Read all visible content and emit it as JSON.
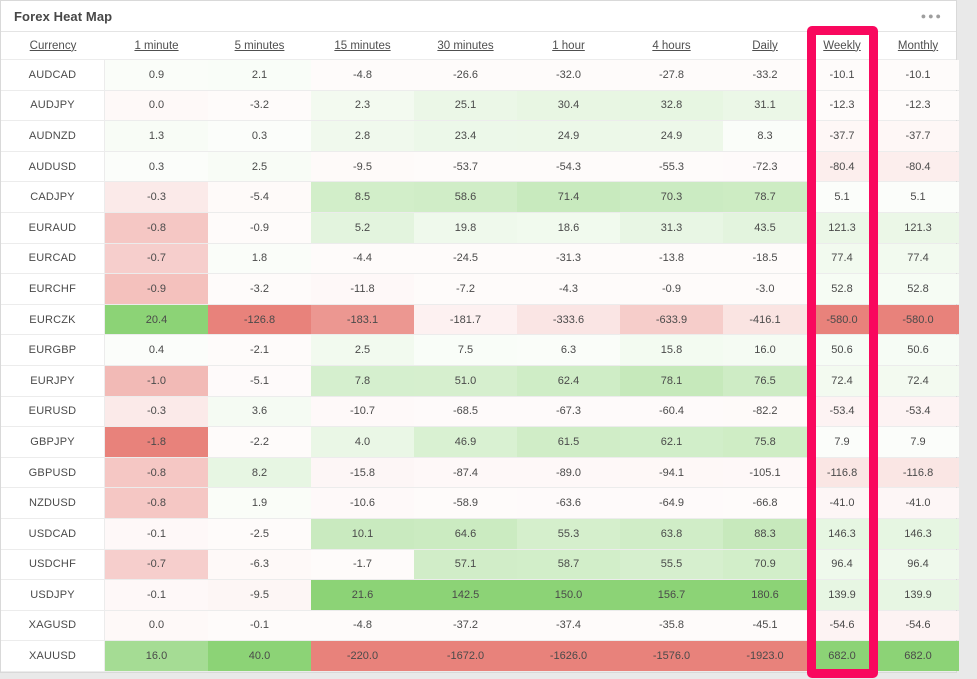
{
  "panel": {
    "title": "Forex Heat Map",
    "menu_icon": "●●●"
  },
  "table": {
    "columns": [
      "Currency",
      "1 minute",
      "5 minutes",
      "15 minutes",
      "30 minutes",
      "1 hour",
      "4 hours",
      "Daily",
      "Weekly",
      "Monthly"
    ],
    "rows": [
      {
        "pair": "AUDCAD",
        "values": [
          "0.9",
          "2.1",
          "-4.8",
          "-26.6",
          "-32.0",
          "-27.8",
          "-33.2",
          "-10.1",
          "-10.1"
        ]
      },
      {
        "pair": "AUDJPY",
        "values": [
          "0.0",
          "-3.2",
          "2.3",
          "25.1",
          "30.4",
          "32.8",
          "31.1",
          "-12.3",
          "-12.3"
        ]
      },
      {
        "pair": "AUDNZD",
        "values": [
          "1.3",
          "0.3",
          "2.8",
          "23.4",
          "24.9",
          "24.9",
          "8.3",
          "-37.7",
          "-37.7"
        ]
      },
      {
        "pair": "AUDUSD",
        "values": [
          "0.3",
          "2.5",
          "-9.5",
          "-53.7",
          "-54.3",
          "-55.3",
          "-72.3",
          "-80.4",
          "-80.4"
        ]
      },
      {
        "pair": "CADJPY",
        "values": [
          "-0.3",
          "-5.4",
          "8.5",
          "58.6",
          "71.4",
          "70.3",
          "78.7",
          "5.1",
          "5.1"
        ]
      },
      {
        "pair": "EURAUD",
        "values": [
          "-0.8",
          "-0.9",
          "5.2",
          "19.8",
          "18.6",
          "31.3",
          "43.5",
          "121.3",
          "121.3"
        ]
      },
      {
        "pair": "EURCAD",
        "values": [
          "-0.7",
          "1.8",
          "-4.4",
          "-24.5",
          "-31.3",
          "-13.8",
          "-18.5",
          "77.4",
          "77.4"
        ]
      },
      {
        "pair": "EURCHF",
        "values": [
          "-0.9",
          "-3.2",
          "-11.8",
          "-7.2",
          "-4.3",
          "-0.9",
          "-3.0",
          "52.8",
          "52.8"
        ]
      },
      {
        "pair": "EURCZK",
        "values": [
          "20.4",
          "-126.8",
          "-183.1",
          "-181.7",
          "-333.6",
          "-633.9",
          "-416.1",
          "-580.0",
          "-580.0"
        ]
      },
      {
        "pair": "EURGBP",
        "values": [
          "0.4",
          "-2.1",
          "2.5",
          "7.5",
          "6.3",
          "15.8",
          "16.0",
          "50.6",
          "50.6"
        ]
      },
      {
        "pair": "EURJPY",
        "values": [
          "-1.0",
          "-5.1",
          "7.8",
          "51.0",
          "62.4",
          "78.1",
          "76.5",
          "72.4",
          "72.4"
        ]
      },
      {
        "pair": "EURUSD",
        "values": [
          "-0.3",
          "3.6",
          "-10.7",
          "-68.5",
          "-67.3",
          "-60.4",
          "-82.2",
          "-53.4",
          "-53.4"
        ]
      },
      {
        "pair": "GBPJPY",
        "values": [
          "-1.8",
          "-2.2",
          "4.0",
          "46.9",
          "61.5",
          "62.1",
          "75.8",
          "7.9",
          "7.9"
        ]
      },
      {
        "pair": "GBPUSD",
        "values": [
          "-0.8",
          "8.2",
          "-15.8",
          "-87.4",
          "-89.0",
          "-94.1",
          "-105.1",
          "-116.8",
          "-116.8"
        ]
      },
      {
        "pair": "NZDUSD",
        "values": [
          "-0.8",
          "1.9",
          "-10.6",
          "-58.9",
          "-63.6",
          "-64.9",
          "-66.8",
          "-41.0",
          "-41.0"
        ]
      },
      {
        "pair": "USDCAD",
        "values": [
          "-0.1",
          "-2.5",
          "10.1",
          "64.6",
          "55.3",
          "63.8",
          "88.3",
          "146.3",
          "146.3"
        ]
      },
      {
        "pair": "USDCHF",
        "values": [
          "-0.7",
          "-6.3",
          "-1.7",
          "57.1",
          "58.7",
          "55.5",
          "70.9",
          "96.4",
          "96.4"
        ]
      },
      {
        "pair": "USDJPY",
        "values": [
          "-0.1",
          "-9.5",
          "21.6",
          "142.5",
          "150.0",
          "156.7",
          "180.6",
          "139.9",
          "139.9"
        ]
      },
      {
        "pair": "XAGUSD",
        "values": [
          "0.0",
          "-0.1",
          "-4.8",
          "-37.2",
          "-37.4",
          "-35.8",
          "-45.1",
          "-54.6",
          "-54.6"
        ]
      },
      {
        "pair": "XAUUSD",
        "values": [
          "16.0",
          "40.0",
          "-220.0",
          "-1672.0",
          "-1626.0",
          "-1576.0",
          "-1923.0",
          "682.0",
          "682.0"
        ]
      }
    ]
  },
  "annotation": {
    "highlighted_column": "Weekly",
    "highlight_color": "#F9085E"
  },
  "colors": {
    "positive_full": "#8CD376",
    "negative_full": "#E8827B",
    "page_bg": "#e9e9e9",
    "panel_bg": "#ffffff",
    "row_border": "#ececec",
    "text": "#4a4a4a"
  }
}
